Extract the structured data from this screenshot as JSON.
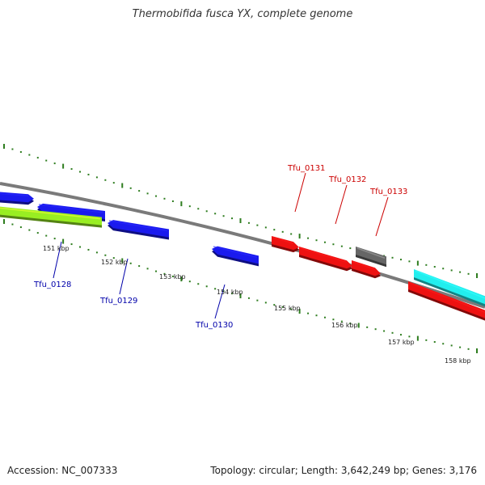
{
  "title": "Thermobifida fusca YX, complete genome",
  "footer": {
    "accession": "Accession: NC_007333",
    "stats": "Topology: circular; Length: 3,642,249 bp; Genes: 3,176"
  },
  "colors": {
    "backbone": "#7a7a7a",
    "tick": "#2e7d1f",
    "forward_label": "#cc0000",
    "reverse_label": "#0000aa",
    "blue": "#1a1aee",
    "red": "#ee1111",
    "gray": "#666666",
    "cyan": "#22eeee",
    "green": "#99ee22"
  },
  "scale_labels": [
    "151 kbp",
    "152 kbp",
    "153 kbp",
    "154 kbp",
    "155 kbp",
    "156 kbp",
    "157 kbp",
    "158 kbp"
  ],
  "genes": [
    {
      "label": "",
      "color": "blue"
    },
    {
      "label": "Tfu_0128",
      "color": "blue"
    },
    {
      "label": "Tfu_0129",
      "color": "blue"
    },
    {
      "label": "Tfu_0130",
      "color": "blue"
    },
    {
      "label": "Tfu_0131",
      "color": "red"
    },
    {
      "label": "Tfu_0132",
      "color": "red"
    },
    {
      "label": "Tfu_0133",
      "color": "gray"
    },
    {
      "label": "",
      "color": "red"
    },
    {
      "label": "",
      "color": "cyan"
    },
    {
      "label": "",
      "color": "red"
    },
    {
      "label": "",
      "color": "green"
    }
  ]
}
